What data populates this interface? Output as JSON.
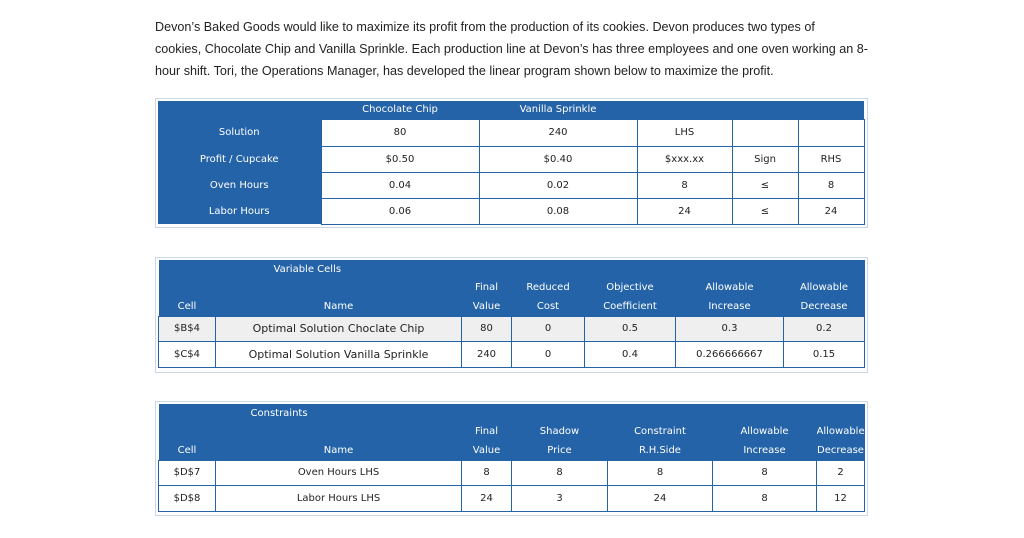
{
  "intro": {
    "line1": "Devon’s Baked Goods would like to maximize its profit from the production of its cookies.  Devon produces two types of",
    "line2": "cookies, Chocolate Chip and Vanilla Sprinkle.  Each production line at Devon’s has three employees and one oven working an 8-",
    "line3": "hour shift.  Tori, the Operations Manager, has developed the linear program shown below to maximize the profit."
  },
  "lp": {
    "col_choc": "Chocolate Chip",
    "col_van": "Vanilla Sprinkle",
    "rows": [
      {
        "label": "Solution",
        "choc": "80",
        "van": "240",
        "lhs": "LHS",
        "sign": "",
        "rhs": ""
      },
      {
        "label": "Profit / Cupcake",
        "choc": "$0.50",
        "van": "$0.40",
        "lhs": "$xxx.xx",
        "sign": "Sign",
        "rhs": "RHS"
      },
      {
        "label": "Oven Hours",
        "choc": "0.04",
        "van": "0.02",
        "lhs": "8",
        "sign": "≤",
        "rhs": "8"
      },
      {
        "label": "Labor Hours",
        "choc": "0.06",
        "van": "0.08",
        "lhs": "24",
        "sign": "≤",
        "rhs": "24"
      }
    ]
  },
  "variable_cells": {
    "title": "Variable Cells",
    "headers": {
      "cell": "Cell",
      "name": "Name",
      "final1": "Final",
      "final2": "Value",
      "reduced1": "Reduced",
      "reduced2": "Cost",
      "obj1": "Objective",
      "obj2": "Coefficient",
      "inc1": "Allowable",
      "inc2": "Increase",
      "dec1": "Allowable",
      "dec2": "Decrease"
    },
    "rows": [
      {
        "cell": "$B$4",
        "name": "Optimal Solution Choclate Chip",
        "final": "80",
        "reduced": "0",
        "obj": "0.5",
        "inc": "0.3",
        "dec": "0.2"
      },
      {
        "cell": "$C$4",
        "name": "Optimal Solution Vanilla Sprinkle",
        "final": "240",
        "reduced": "0",
        "obj": "0.4",
        "inc": "0.266666667",
        "dec": "0.15"
      }
    ]
  },
  "constraints": {
    "title": "Constraints",
    "headers": {
      "cell": "Cell",
      "name": "Name",
      "final1": "Final",
      "final2": "Value",
      "shadow1": "Shadow",
      "shadow2": "Price",
      "rhs1": "Constraint",
      "rhs2": "R.H.Side",
      "inc1": "Allowable",
      "inc2": "Increase",
      "dec1": "Allowable",
      "dec2": "Decrease"
    },
    "rows": [
      {
        "cell": "$D$7",
        "name": "Oven Hours LHS",
        "final": "8",
        "shadow": "8",
        "rhs": "8",
        "inc": "8",
        "dec": "2"
      },
      {
        "cell": "$D$8",
        "name": "Labor Hours LHS",
        "final": "24",
        "shadow": "3",
        "rhs": "24",
        "inc": "8",
        "dec": "12"
      }
    ]
  }
}
